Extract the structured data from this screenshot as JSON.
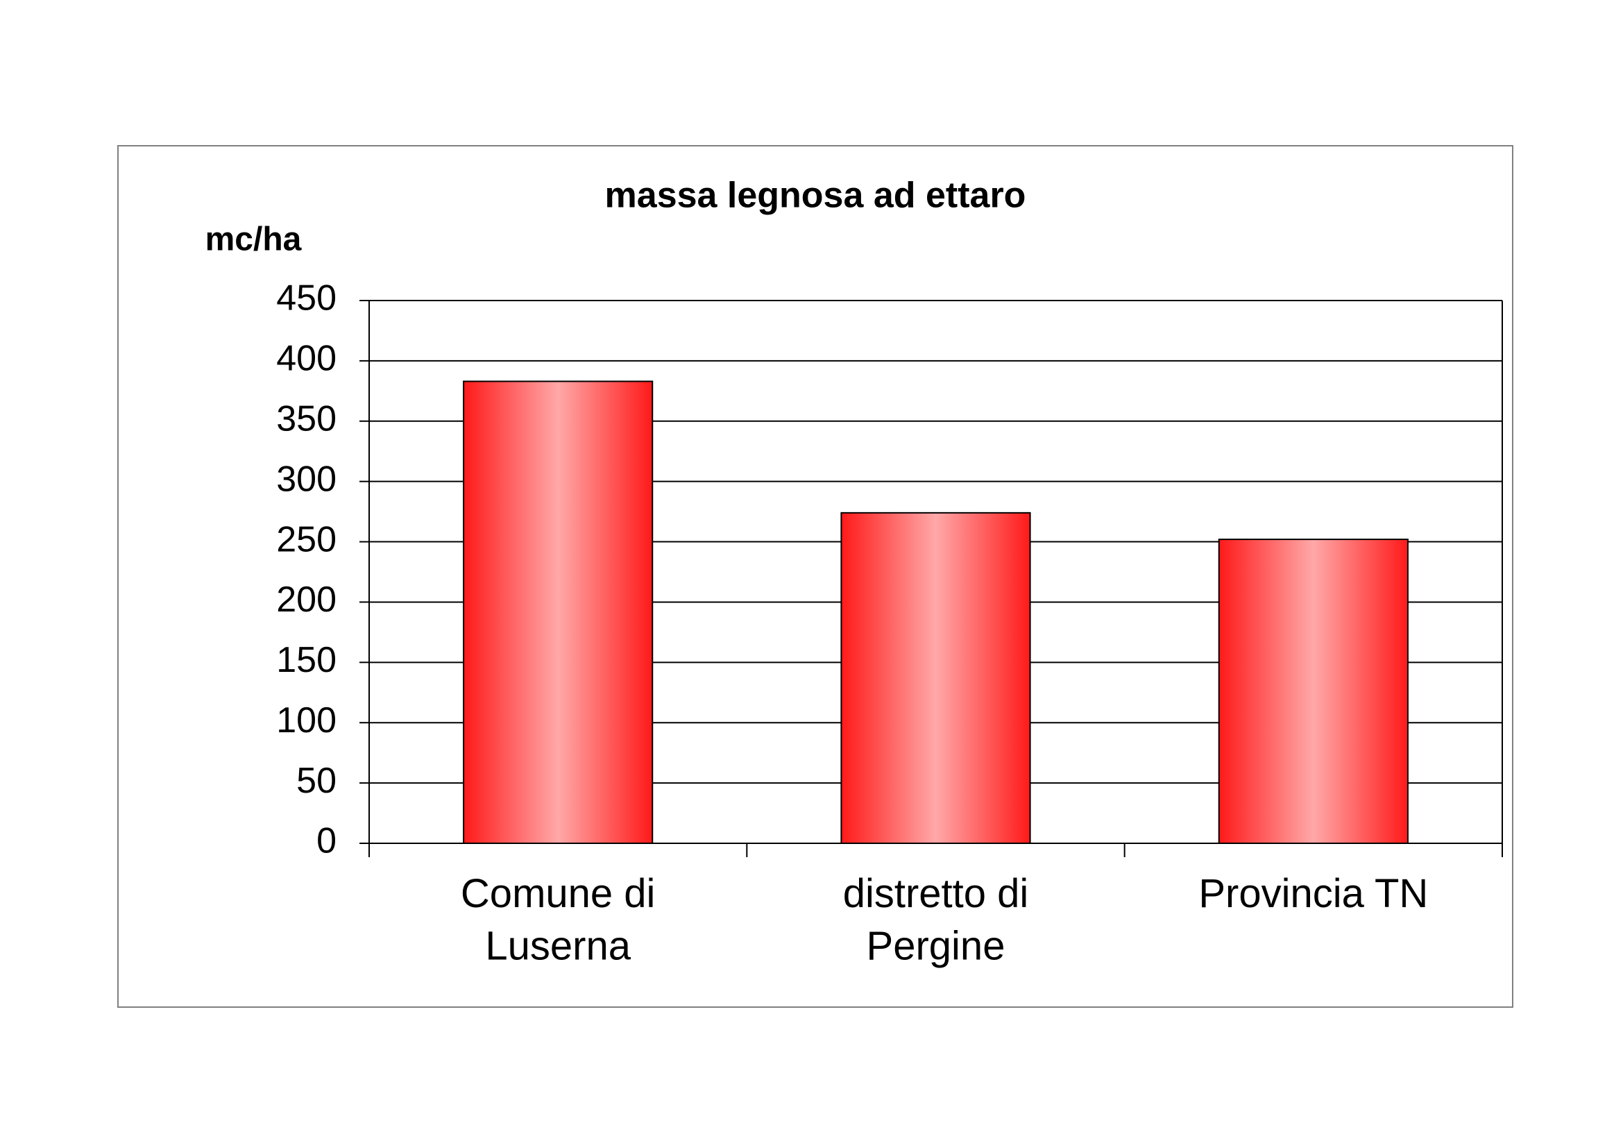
{
  "chart_data": {
    "type": "bar",
    "title": "massa legnosa ad ettaro",
    "y_label": "mc/ha",
    "categories": [
      "Comune di\nLuserna",
      "distretto di\nPergine",
      "Provincia TN"
    ],
    "values": [
      383,
      274,
      252
    ],
    "color": "#ff2020",
    "ylim": [
      0,
      450
    ],
    "yticks": [
      0,
      50,
      100,
      150,
      200,
      250,
      300,
      350,
      400,
      450
    ],
    "grid": true
  }
}
